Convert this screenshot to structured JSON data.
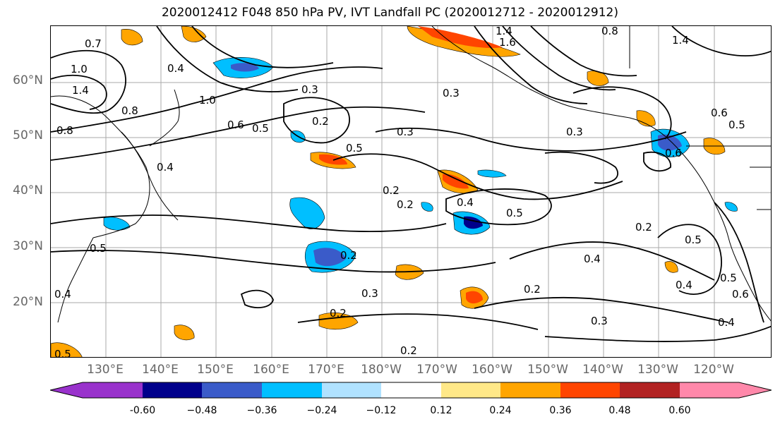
{
  "title": "2020012412 F048 850 hPa PV, IVT Landfall PC (2020012712 - 2020012912)",
  "map": {
    "lon_labels": [
      "130°E",
      "140°E",
      "150°E",
      "160°E",
      "170°E",
      "180°W",
      "170°W",
      "160°W",
      "150°W",
      "140°W",
      "130°W",
      "120°W"
    ],
    "lat_labels": [
      "60°N",
      "50°N",
      "40°N",
      "30°N",
      "20°N"
    ],
    "contour_labels": [
      "0.7",
      "1.0",
      "0.8",
      "1.4",
      "0.8",
      "0.4",
      "1.0",
      "0.6",
      "0.5",
      "0.3",
      "0.2",
      "0.5",
      "0.3",
      "0.2",
      "1.4",
      "1.6",
      "0.8",
      "1.4",
      "0.3",
      "0.6",
      "0.5",
      "0.4",
      "0.5",
      "0.2",
      "0.4",
      "0.5",
      "0.2",
      "0.4",
      "0.6",
      "0.5",
      "0.2",
      "0.3",
      "0.2",
      "0.4",
      "0.3",
      "0.4",
      "0.5",
      "0.4",
      "0.6",
      "0.3",
      "0.2",
      "0.2",
      "0.5"
    ]
  },
  "colorbar": {
    "colors": [
      "#9932CC",
      "#00008B",
      "#3A5BC9",
      "#00BFFF",
      "#B0E2FF",
      "#FFFFFF",
      "#FFE888",
      "#FFA500",
      "#FF4500",
      "#B22222",
      "#FF88AA"
    ],
    "tick_labels": [
      "-0.60",
      "−0.48",
      "−0.36",
      "−0.24",
      "−0.12",
      "0.12",
      "0.24",
      "0.36",
      "0.48",
      "0.60"
    ]
  }
}
